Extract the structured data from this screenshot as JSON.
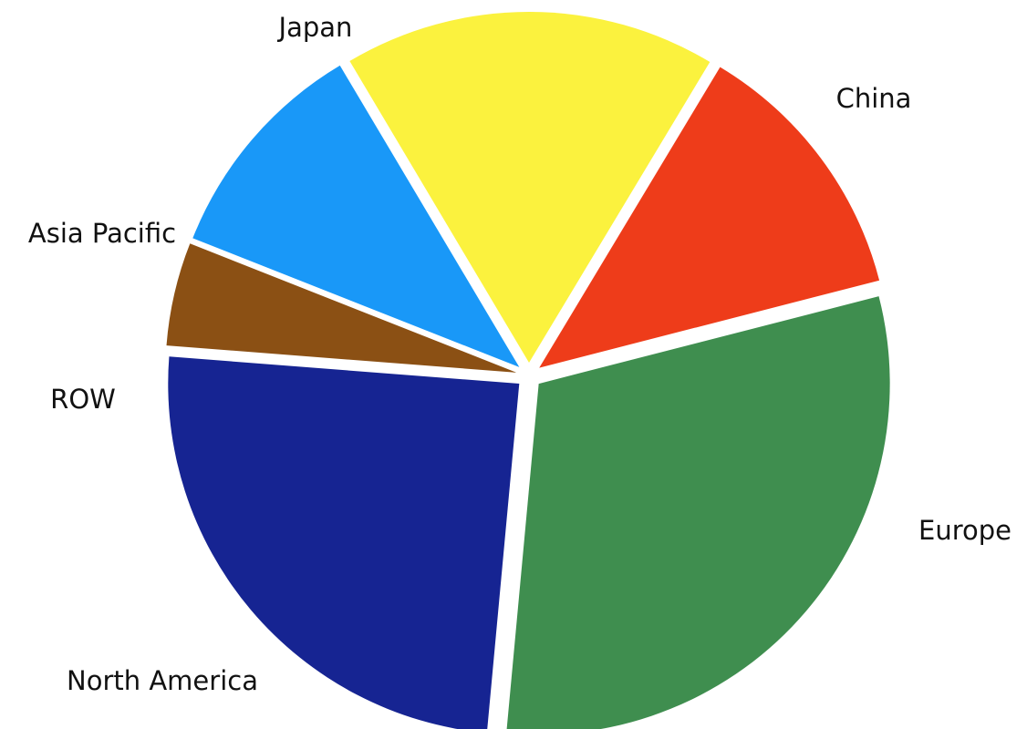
{
  "chart_data": {
    "type": "pie",
    "title": "",
    "slices": [
      {
        "label": "China",
        "value": 13,
        "color": "#ee3c1a"
      },
      {
        "label": "Europe",
        "value": 32,
        "color": "#3f8e4f"
      },
      {
        "label": "North America",
        "value": 26,
        "color": "#162492"
      },
      {
        "label": "ROW",
        "value": 5,
        "color": "#8b5014"
      },
      {
        "label": "Asia Pacific",
        "value": 11,
        "color": "#1998f8"
      },
      {
        "label": "Japan",
        "value": 18,
        "color": "#fbf23e"
      }
    ],
    "start_angle_deg": 31,
    "direction": "clockwise",
    "exploded": true,
    "legend": "none"
  }
}
